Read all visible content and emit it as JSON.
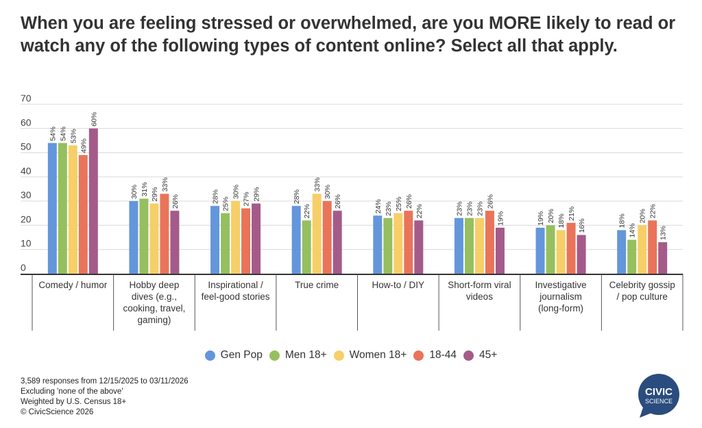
{
  "chart_data": {
    "type": "bar",
    "title": "When you are feeling stressed or overwhelmed, are you MORE likely to read or watch any of the following types of content online? Select all that apply.",
    "xlabel": "",
    "ylabel": "",
    "ylim": [
      0,
      70
    ],
    "yticks": [
      0,
      10,
      20,
      30,
      40,
      50,
      60,
      70
    ],
    "grid": true,
    "legend_position": "bottom",
    "value_suffix": "%",
    "categories": [
      [
        "Comedy / humor"
      ],
      [
        "Hobby deep",
        "dives (e.g.,",
        "cooking, travel,",
        "gaming)"
      ],
      [
        "Inspirational /",
        "feel-good stories"
      ],
      [
        "True crime"
      ],
      [
        "How-to / DIY"
      ],
      [
        "Short-form viral",
        "videos"
      ],
      [
        "Investigative",
        "journalism",
        "(long-form)"
      ],
      [
        "Celebrity gossip",
        "/ pop culture"
      ]
    ],
    "series": [
      {
        "name": "Gen Pop",
        "color": "#6496dc",
        "values": [
          54,
          30,
          28,
          28,
          24,
          23,
          19,
          18
        ]
      },
      {
        "name": "Men 18+",
        "color": "#96bf5f",
        "values": [
          54,
          31,
          25,
          22,
          23,
          23,
          20,
          14
        ]
      },
      {
        "name": "Women 18+",
        "color": "#f6cf68",
        "values": [
          53,
          29,
          30,
          33,
          25,
          23,
          18,
          20
        ]
      },
      {
        "name": "18-44",
        "color": "#e9745a",
        "values": [
          49,
          33,
          27,
          30,
          26,
          26,
          21,
          22
        ]
      },
      {
        "name": "45+",
        "color": "#a45b8a",
        "values": [
          60,
          26,
          29,
          26,
          22,
          19,
          16,
          13
        ]
      }
    ]
  },
  "footnotes": [
    "3,589 responses from 12/15/2025 to 03/11/2026",
    "Excluding 'none of the above'",
    "Weighted by U.S. Census 18+",
    "© CivicScience 2026"
  ],
  "logo": {
    "line1": "CIVIC",
    "line2": "SCIENCE",
    "color": "#2b4c7e"
  }
}
